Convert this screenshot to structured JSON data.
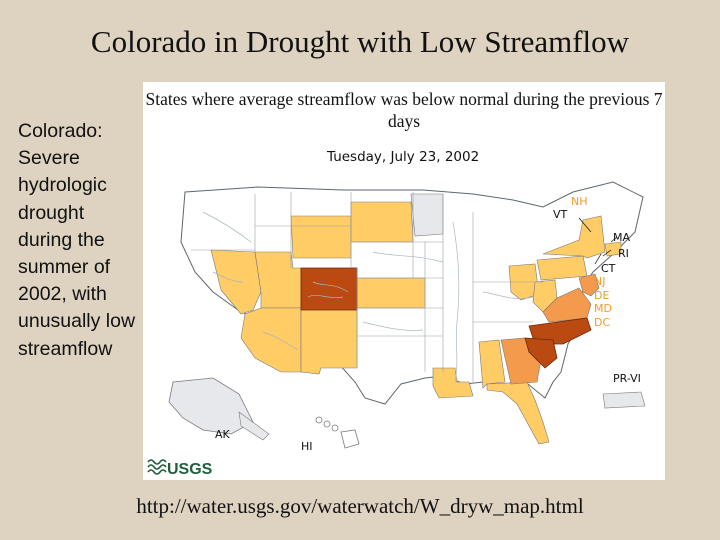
{
  "slide": {
    "title": "Colorado in Drought with Low Streamflow",
    "side_text": "Colorado: Severe hydrologic drought during the summer of 2002, with unusually low streamflow",
    "source_url": "http://water.usgs.gov/waterwatch/W_dryw_map.html"
  },
  "map": {
    "caption": "States where average streamflow was below normal during the previous 7 days",
    "date": "Tuesday, July 23, 2002",
    "logo_text": "USGS",
    "colors": {
      "normal": "#ffffff",
      "below_normal": "#ffcc66",
      "much_below": "#f39a4d",
      "severe": "#bb4a12",
      "no_data": "#e6e8ec",
      "label_orange": "#f39a2a",
      "label_black": "#111111"
    },
    "labels": {
      "nh": "NH",
      "vt": "VT",
      "ma": "MA",
      "ri": "RI",
      "ct": "CT",
      "nj": "NJ",
      "de": "DE",
      "md": "MD",
      "dc": "DC",
      "pr_vi": "PR-VI",
      "ak": "AK",
      "hi": "HI"
    },
    "states_below_normal": [
      "NV",
      "UT",
      "AZ",
      "NM",
      "WY",
      "SD",
      "KS",
      "LA",
      "AL",
      "FL",
      "OH",
      "PA",
      "NY",
      "WV",
      "RI",
      "CT"
    ],
    "states_much_below": [
      "GA",
      "VA",
      "DE",
      "NJ",
      "MD"
    ],
    "states_severe": [
      "CO",
      "SC",
      "NC"
    ],
    "states_no_data": [
      "MN",
      "AK"
    ]
  }
}
